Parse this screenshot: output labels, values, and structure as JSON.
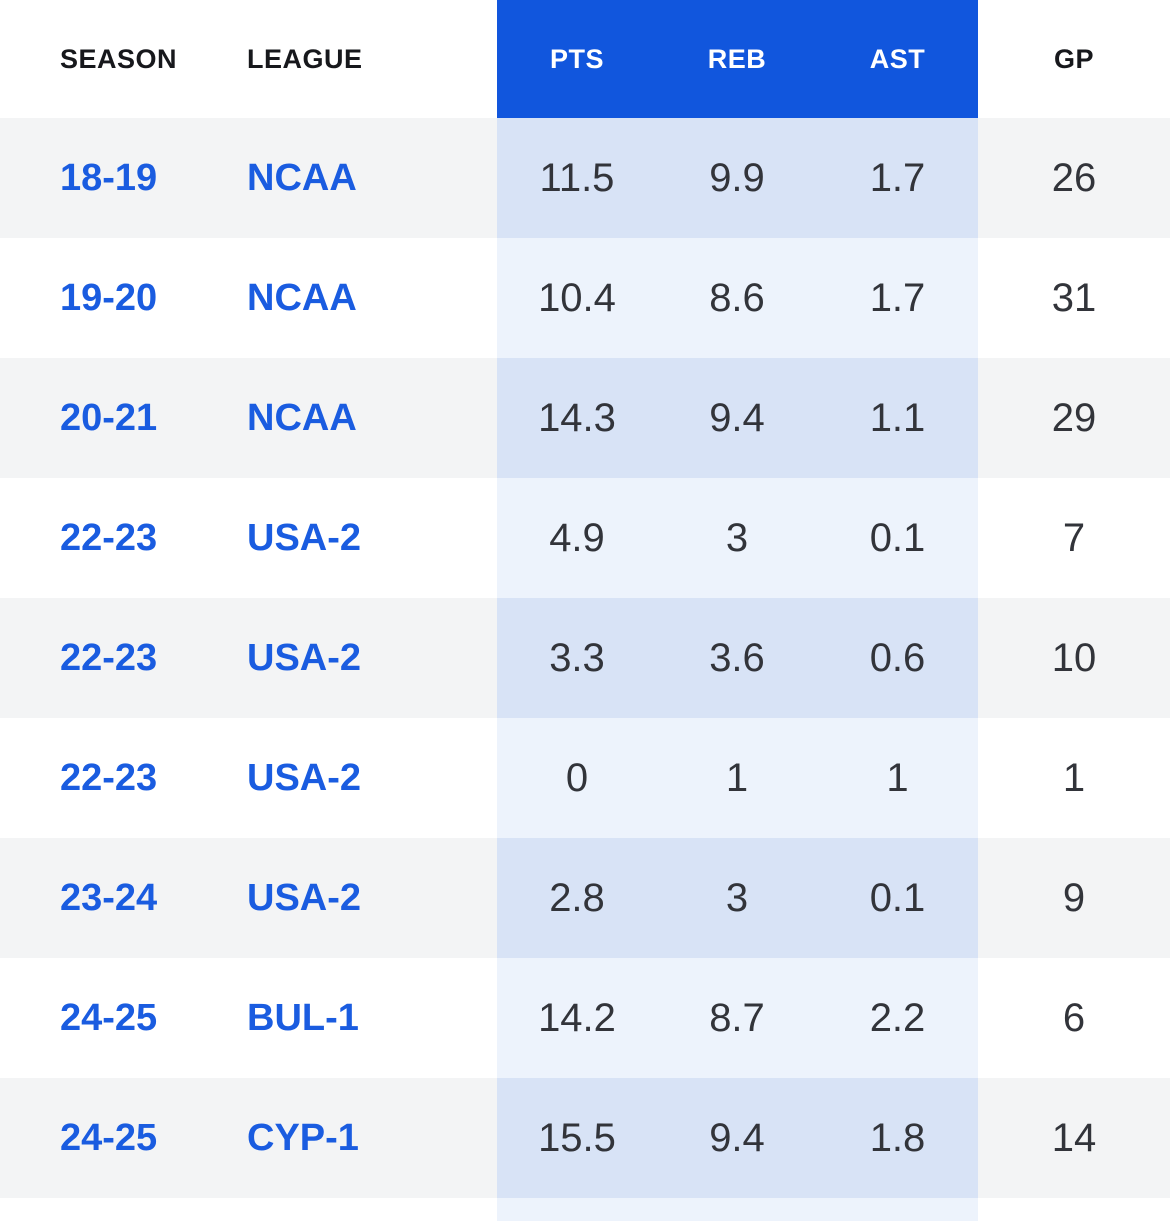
{
  "table": {
    "columns": [
      {
        "key": "season",
        "label": "SEASON",
        "highlight": false
      },
      {
        "key": "league",
        "label": "LEAGUE",
        "highlight": false
      },
      {
        "key": "pts",
        "label": "PTS",
        "highlight": true
      },
      {
        "key": "reb",
        "label": "REB",
        "highlight": true
      },
      {
        "key": "ast",
        "label": "AST",
        "highlight": true
      },
      {
        "key": "gp",
        "label": "GP",
        "highlight": false
      }
    ],
    "rows": [
      {
        "season": "18-19",
        "league": "NCAA",
        "pts": "11.5",
        "reb": "9.9",
        "ast": "1.7",
        "gp": "26"
      },
      {
        "season": "19-20",
        "league": "NCAA",
        "pts": "10.4",
        "reb": "8.6",
        "ast": "1.7",
        "gp": "31"
      },
      {
        "season": "20-21",
        "league": "NCAA",
        "pts": "14.3",
        "reb": "9.4",
        "ast": "1.1",
        "gp": "29"
      },
      {
        "season": "22-23",
        "league": "USA-2",
        "pts": "4.9",
        "reb": "3",
        "ast": "0.1",
        "gp": "7"
      },
      {
        "season": "22-23",
        "league": "USA-2",
        "pts": "3.3",
        "reb": "3.6",
        "ast": "0.6",
        "gp": "10"
      },
      {
        "season": "22-23",
        "league": "USA-2",
        "pts": "0",
        "reb": "1",
        "ast": "1",
        "gp": "1"
      },
      {
        "season": "23-24",
        "league": "USA-2",
        "pts": "2.8",
        "reb": "3",
        "ast": "0.1",
        "gp": "9"
      },
      {
        "season": "24-25",
        "league": "BUL-1",
        "pts": "14.2",
        "reb": "8.7",
        "ast": "2.2",
        "gp": "6"
      },
      {
        "season": "24-25",
        "league": "CYP-1",
        "pts": "15.5",
        "reb": "9.4",
        "ast": "1.8",
        "gp": "14"
      }
    ]
  },
  "colors": {
    "header_highlight_bg": "#1156dd",
    "header_highlight_text": "#ffffff",
    "header_text": "#17181c",
    "link_text": "#1a5ce0",
    "number_text": "#32343a",
    "row_stripe_bg": "#f3f4f5",
    "band_on_stripe": "#d8e3f6",
    "band_on_white": "#edf3fc"
  }
}
